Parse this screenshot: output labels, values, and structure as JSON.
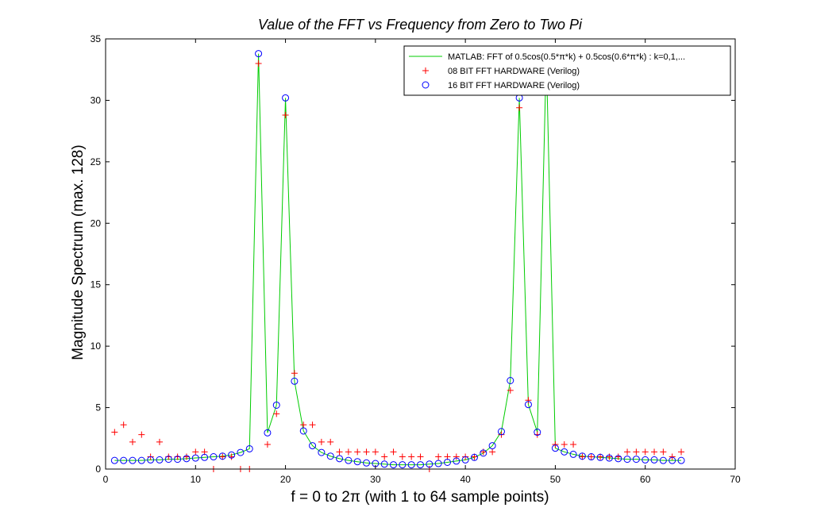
{
  "chart_data": {
    "type": "line",
    "title": "Value of the FFT vs Frequency from Zero to Two Pi",
    "xlabel": "f = 0 to 2π (with 1 to 64 sample points)",
    "ylabel": "Magnitude Spectrum (max. 128)",
    "xlim": [
      0,
      70
    ],
    "ylim": [
      0,
      35
    ],
    "xticks": [
      0,
      10,
      20,
      30,
      40,
      50,
      60,
      70
    ],
    "yticks": [
      0,
      5,
      10,
      15,
      20,
      25,
      30,
      35
    ],
    "grid": false,
    "legend_position": "top-right",
    "x": [
      1,
      2,
      3,
      4,
      5,
      6,
      7,
      8,
      9,
      10,
      11,
      12,
      13,
      14,
      15,
      16,
      17,
      18,
      19,
      20,
      21,
      22,
      23,
      24,
      25,
      26,
      27,
      28,
      29,
      30,
      31,
      32,
      33,
      34,
      35,
      36,
      37,
      38,
      39,
      40,
      41,
      42,
      43,
      44,
      45,
      46,
      47,
      48,
      49,
      50,
      51,
      52,
      53,
      54,
      55,
      56,
      57,
      58,
      59,
      60,
      61,
      62,
      63,
      64
    ],
    "series": [
      {
        "name": "MATLAB: FFT of 0.5cos(0.5*π*k) + 0.5cos(0.6*π*k) : k=0,1,...",
        "style": "line",
        "color": "#00cc00",
        "values": [
          0.7,
          0.7,
          0.7,
          0.7,
          0.75,
          0.75,
          0.8,
          0.8,
          0.85,
          0.9,
          0.95,
          1.0,
          1.05,
          1.15,
          1.35,
          1.65,
          33.8,
          2.95,
          5.2,
          30.2,
          7.15,
          3.1,
          1.9,
          1.35,
          1.05,
          0.85,
          0.7,
          0.6,
          0.5,
          0.45,
          0.4,
          0.35,
          0.35,
          0.35,
          0.35,
          0.4,
          0.45,
          0.55,
          0.65,
          0.75,
          0.95,
          1.3,
          1.9,
          3.05,
          7.2,
          30.2,
          5.25,
          3.0,
          33.8,
          1.7,
          1.4,
          1.2,
          1.05,
          1.0,
          0.95,
          0.9,
          0.85,
          0.8,
          0.8,
          0.75,
          0.75,
          0.7,
          0.7,
          0.7
        ]
      },
      {
        "name": "08 BIT FFT HARDWARE (Verilog)",
        "style": "marker-plus",
        "color": "#ff0000",
        "values": [
          3.0,
          3.6,
          2.2,
          2.8,
          1.0,
          2.2,
          1.0,
          1.0,
          1.0,
          1.4,
          1.4,
          0,
          1.0,
          1.0,
          0,
          0,
          33.0,
          2.0,
          4.5,
          28.8,
          7.8,
          3.6,
          3.6,
          2.2,
          2.2,
          1.4,
          1.4,
          1.4,
          1.4,
          1.4,
          1.0,
          1.4,
          1.0,
          1.0,
          1.0,
          0,
          1.0,
          1.0,
          1.0,
          1.0,
          1.0,
          1.4,
          1.4,
          2.8,
          6.4,
          29.4,
          5.6,
          2.8,
          33.0,
          2.0,
          2.0,
          2.0,
          1.0,
          1.0,
          1.0,
          1.0,
          1.0,
          1.4,
          1.4,
          1.4,
          1.4,
          1.4,
          1.0,
          1.4
        ]
      },
      {
        "name": "16 BIT FFT HARDWARE (Verilog)",
        "style": "marker-circle",
        "color": "#0000ff",
        "values": [
          0.7,
          0.7,
          0.7,
          0.7,
          0.75,
          0.75,
          0.8,
          0.8,
          0.85,
          0.9,
          0.95,
          1.0,
          1.05,
          1.15,
          1.35,
          1.65,
          33.8,
          2.95,
          5.2,
          30.2,
          7.15,
          3.1,
          1.9,
          1.35,
          1.05,
          0.85,
          0.7,
          0.6,
          0.5,
          0.45,
          0.4,
          0.35,
          0.35,
          0.35,
          0.35,
          0.4,
          0.45,
          0.55,
          0.65,
          0.75,
          0.95,
          1.3,
          1.9,
          3.05,
          7.2,
          30.2,
          5.25,
          3.0,
          33.8,
          1.7,
          1.4,
          1.2,
          1.05,
          1.0,
          0.95,
          0.9,
          0.85,
          0.8,
          0.8,
          0.75,
          0.75,
          0.7,
          0.7,
          0.7
        ]
      }
    ]
  }
}
